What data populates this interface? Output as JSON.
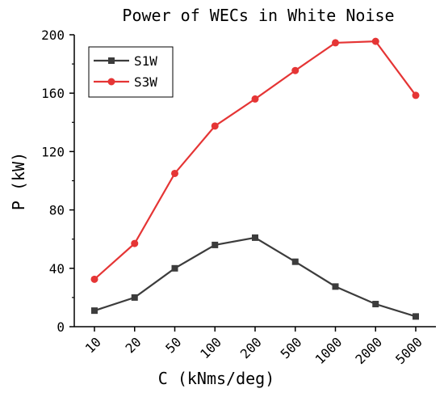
{
  "chart_data": {
    "type": "line",
    "title": "Power of WECs in White Noise",
    "xlabel": "C (kNms/deg)",
    "ylabel": "P (kW)",
    "categories": [
      "10",
      "20",
      "50",
      "100",
      "200",
      "500",
      "1000",
      "2000",
      "5000"
    ],
    "ylim": [
      0,
      200
    ],
    "yticks": [
      0,
      40,
      80,
      120,
      160,
      200
    ],
    "grid": false,
    "legend_position": "top-left",
    "series": [
      {
        "name": "S1W",
        "color": "#3c3c3c",
        "marker": "square",
        "values": [
          11,
          20,
          40,
          56,
          61,
          44.5,
          27.5,
          15.5,
          7
        ]
      },
      {
        "name": "S3W",
        "color": "#e53535",
        "marker": "circle",
        "values": [
          32.5,
          57,
          105,
          137.5,
          156,
          175.5,
          194.5,
          195.5,
          158.5
        ]
      }
    ]
  }
}
